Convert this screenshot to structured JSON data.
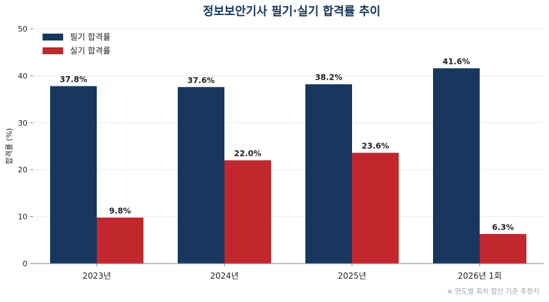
{
  "chart_data": {
    "type": "bar",
    "title": "정보보안기사 필기·실기 합격률 추이",
    "xlabel": "",
    "ylabel": "합격률 (%)",
    "categories": [
      "2023년",
      "2024년",
      "2025년",
      "2026년 1회"
    ],
    "ylim": [
      0,
      50
    ],
    "yticks": [
      0,
      10,
      20,
      30,
      40,
      50
    ],
    "grid": true,
    "legend_position": "top-left",
    "series": [
      {
        "name": "필기 합격률",
        "color": "#17375e",
        "values": [
          37.8,
          37.6,
          38.2,
          41.6
        ],
        "labels": [
          "37.8%",
          "37.6%",
          "38.2%",
          "41.6%"
        ]
      },
      {
        "name": "실기 합격률",
        "color": "#c1272d",
        "values": [
          9.8,
          22.0,
          23.6,
          6.3
        ],
        "labels": [
          "9.8%",
          "22.0%",
          "23.6%",
          "6.3%"
        ]
      }
    ],
    "note": "※ 연도별 회차 합산 기준 추정치"
  }
}
